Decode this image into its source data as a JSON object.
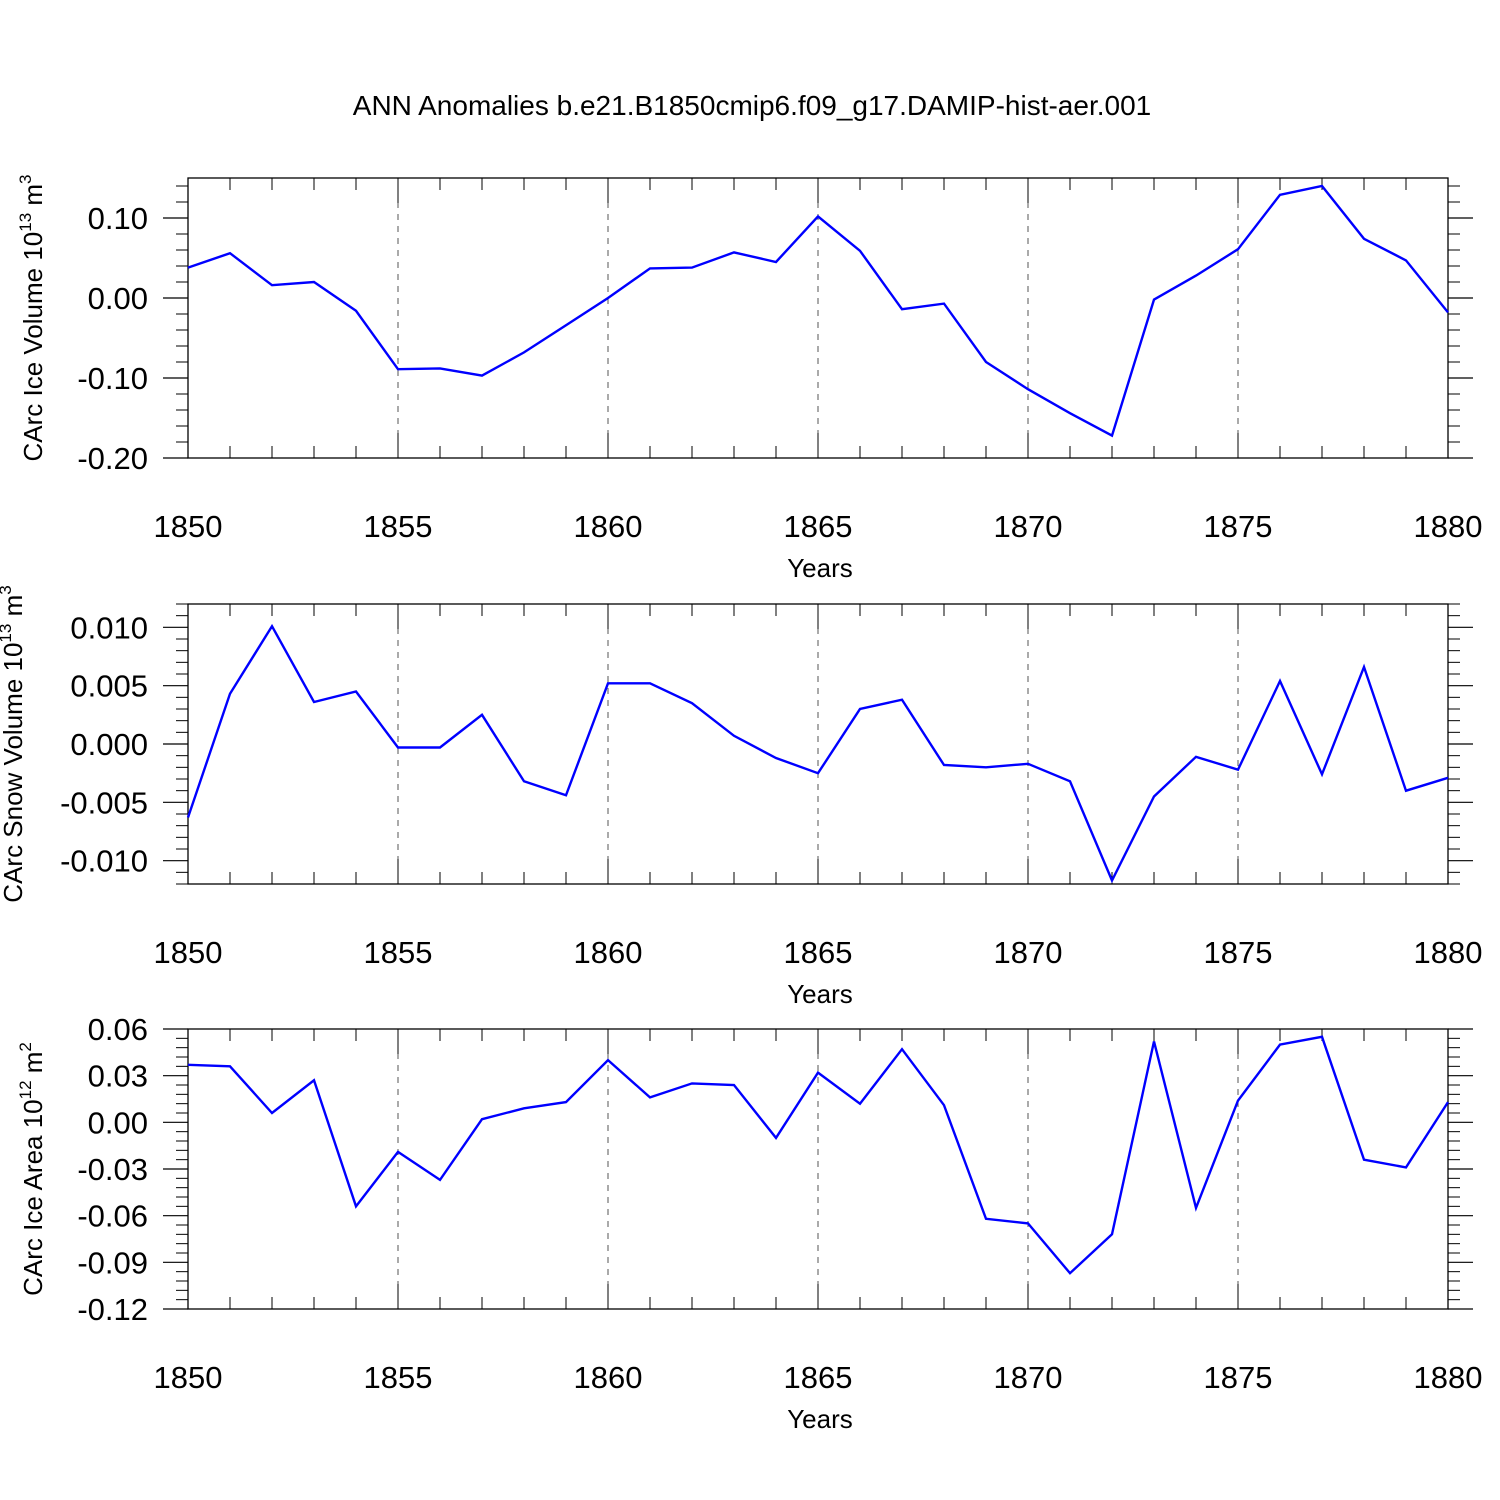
{
  "title": "ANN Anomalies b.e21.B1850cmip6.f09_g17.DAMIP-hist-aer.001",
  "colors": {
    "series": "#0000ff",
    "axis": "#000000",
    "grid": "#555555"
  },
  "chart_data": [
    {
      "type": "line",
      "ylabel": {
        "text": "CArc Ice Volume 10",
        "exp": "13",
        "unit": " m",
        "unit_exp": "3"
      },
      "xlabel": "Years",
      "xlim": [
        1850,
        1880
      ],
      "ylim": [
        -0.2,
        0.15
      ],
      "xticks": [
        "1850",
        "1855",
        "1860",
        "1865",
        "1870",
        "1875",
        "1880"
      ],
      "yticks": [
        {
          "v": -0.2,
          "label": "-0.20"
        },
        {
          "v": -0.1,
          "label": "-0.10"
        },
        {
          "v": 0.0,
          "label": "0.00"
        },
        {
          "v": 0.1,
          "label": "0.10"
        }
      ],
      "grid": "vertical dashed at major x ticks",
      "x": [
        1850,
        1851,
        1852,
        1853,
        1854,
        1855,
        1856,
        1857,
        1858,
        1859,
        1860,
        1861,
        1862,
        1863,
        1864,
        1865,
        1866,
        1867,
        1868,
        1869,
        1870,
        1871,
        1872,
        1873,
        1874,
        1875,
        1876,
        1877,
        1878,
        1879,
        1880
      ],
      "values": [
        0.038,
        0.056,
        0.016,
        0.02,
        -0.016,
        -0.089,
        -0.088,
        -0.097,
        -0.068,
        -0.034,
        0.0,
        0.037,
        0.038,
        0.057,
        0.045,
        0.102,
        0.059,
        -0.014,
        -0.007,
        -0.08,
        -0.114,
        -0.144,
        -0.172,
        -0.002,
        0.028,
        0.061,
        0.129,
        0.14,
        0.074,
        0.047,
        -0.018
      ]
    },
    {
      "type": "line",
      "ylabel": {
        "text": "CArc Snow Volume 10",
        "exp": "13",
        "unit": " m",
        "unit_exp": "3"
      },
      "xlabel": "Years",
      "xlim": [
        1850,
        1880
      ],
      "ylim": [
        -0.012,
        0.012
      ],
      "xticks": [
        "1850",
        "1855",
        "1860",
        "1865",
        "1870",
        "1875",
        "1880"
      ],
      "yticks": [
        {
          "v": -0.01,
          "label": "-0.010"
        },
        {
          "v": -0.005,
          "label": "-0.005"
        },
        {
          "v": 0.0,
          "label": "0.000"
        },
        {
          "v": 0.005,
          "label": "0.005"
        },
        {
          "v": 0.01,
          "label": "0.010"
        }
      ],
      "grid": "vertical dashed at major x ticks",
      "x": [
        1850,
        1851,
        1852,
        1853,
        1854,
        1855,
        1856,
        1857,
        1858,
        1859,
        1860,
        1861,
        1862,
        1863,
        1864,
        1865,
        1866,
        1867,
        1868,
        1869,
        1870,
        1871,
        1872,
        1873,
        1874,
        1875,
        1876,
        1877,
        1878,
        1879,
        1880
      ],
      "values": [
        -0.0063,
        0.0043,
        0.0101,
        0.0036,
        0.0045,
        -0.0003,
        -0.0003,
        0.0025,
        -0.0032,
        -0.0044,
        0.0052,
        0.0052,
        0.0035,
        0.0007,
        -0.0012,
        -0.0025,
        0.003,
        0.0038,
        -0.0018,
        -0.002,
        -0.0017,
        -0.0032,
        -0.0117,
        -0.0045,
        -0.0011,
        -0.0022,
        0.0054,
        -0.0026,
        0.0066,
        -0.004,
        -0.0029
      ]
    },
    {
      "type": "line",
      "ylabel": {
        "text": "CArc Ice Area 10",
        "exp": "12",
        "unit": " m",
        "unit_exp": "2"
      },
      "xlabel": "Years",
      "xlim": [
        1850,
        1880
      ],
      "ylim": [
        -0.12,
        0.06
      ],
      "xticks": [
        "1850",
        "1855",
        "1860",
        "1865",
        "1870",
        "1875",
        "1880"
      ],
      "yticks": [
        {
          "v": -0.12,
          "label": "-0.12"
        },
        {
          "v": -0.09,
          "label": "-0.09"
        },
        {
          "v": -0.06,
          "label": "-0.06"
        },
        {
          "v": -0.03,
          "label": "-0.03"
        },
        {
          "v": 0.0,
          "label": "0.00"
        },
        {
          "v": 0.03,
          "label": "0.03"
        },
        {
          "v": 0.06,
          "label": "0.06"
        }
      ],
      "grid": "vertical dashed at major x ticks",
      "x": [
        1850,
        1851,
        1852,
        1853,
        1854,
        1855,
        1856,
        1857,
        1858,
        1859,
        1860,
        1861,
        1862,
        1863,
        1864,
        1865,
        1866,
        1867,
        1868,
        1869,
        1870,
        1871,
        1872,
        1873,
        1874,
        1875,
        1876,
        1877,
        1878,
        1879,
        1880
      ],
      "values": [
        0.037,
        0.036,
        0.006,
        0.027,
        -0.054,
        -0.019,
        -0.037,
        0.002,
        0.009,
        0.013,
        0.04,
        0.016,
        0.025,
        0.024,
        -0.01,
        0.032,
        0.012,
        0.047,
        0.011,
        -0.062,
        -0.065,
        -0.097,
        -0.072,
        0.052,
        -0.055,
        0.014,
        0.05,
        0.055,
        -0.024,
        -0.029,
        0.013
      ]
    }
  ]
}
